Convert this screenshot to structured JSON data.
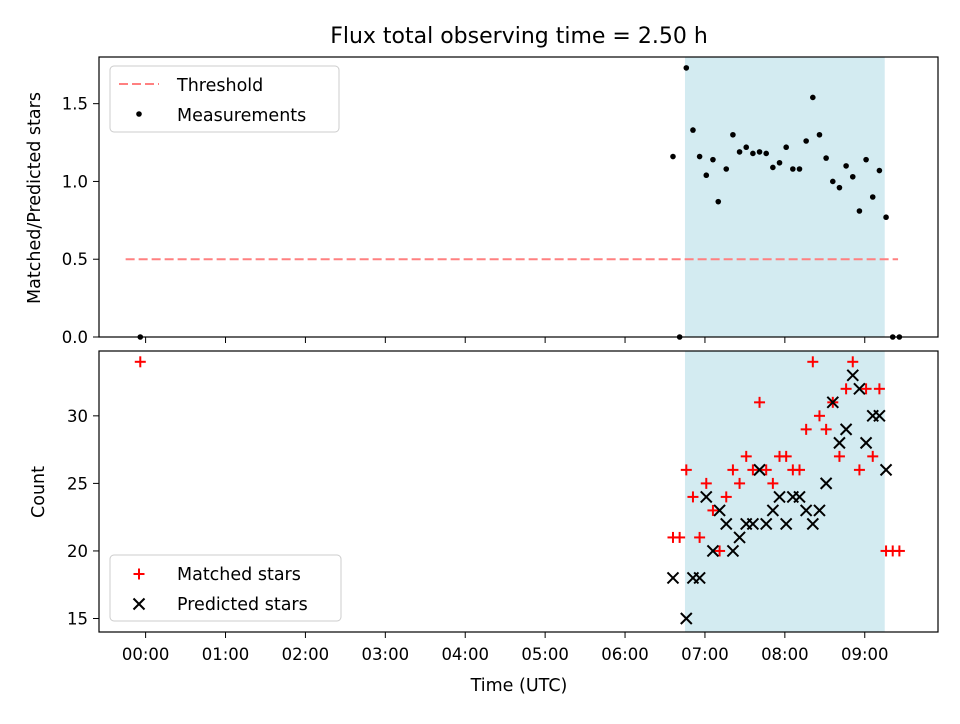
{
  "figure": {
    "title": "Flux total observing time = 2.50 h",
    "xlabel": "Time (UTC)"
  },
  "colors": {
    "band": "#d3ebf1",
    "threshold": "#ff8080",
    "measurement": "#000000",
    "matched": "#ff0000",
    "predicted": "#000000"
  },
  "chart_data": [
    {
      "type": "scatter",
      "panel": "top",
      "ylabel": "Matched/Predicted stars",
      "xlim": [
        "-00:35",
        "09:55"
      ],
      "ylim": [
        0,
        1.8
      ],
      "yticks": [
        0.0,
        0.5,
        1.0,
        1.5
      ],
      "ytick_labels": [
        "0.0",
        "0.5",
        "1.0",
        "1.5"
      ],
      "xtick_labels_shown": false,
      "legend": {
        "position": "top-left",
        "entries": [
          "Threshold",
          "Measurements"
        ]
      },
      "shaded_interval": {
        "start": "06:45",
        "end": "09:15"
      },
      "threshold": {
        "name": "Threshold",
        "y": 0.5,
        "x_start": "-00:15",
        "x_end": "09:25",
        "style": "dashed"
      },
      "series": [
        {
          "name": "Measurements",
          "marker": "dot",
          "points": [
            [
              "-00:04",
              0.0
            ],
            [
              "06:36",
              1.16
            ],
            [
              "06:41",
              0.0
            ],
            [
              "06:46",
              1.73
            ],
            [
              "06:51",
              1.33
            ],
            [
              "06:56",
              1.16
            ],
            [
              "07:01",
              1.04
            ],
            [
              "07:06",
              1.14
            ],
            [
              "07:10",
              0.87
            ],
            [
              "07:16",
              1.08
            ],
            [
              "07:21",
              1.3
            ],
            [
              "07:26",
              1.19
            ],
            [
              "07:31",
              1.22
            ],
            [
              "07:36",
              1.18
            ],
            [
              "07:41",
              1.19
            ],
            [
              "07:46",
              1.18
            ],
            [
              "07:51",
              1.09
            ],
            [
              "07:56",
              1.12
            ],
            [
              "08:01",
              1.22
            ],
            [
              "08:06",
              1.08
            ],
            [
              "08:11",
              1.08
            ],
            [
              "08:16",
              1.26
            ],
            [
              "08:21",
              1.54
            ],
            [
              "08:26",
              1.3
            ],
            [
              "08:31",
              1.15
            ],
            [
              "08:36",
              1.0
            ],
            [
              "08:41",
              0.96
            ],
            [
              "08:46",
              1.1
            ],
            [
              "08:51",
              1.03
            ],
            [
              "08:56",
              0.81
            ],
            [
              "09:01",
              1.14
            ],
            [
              "09:06",
              0.9
            ],
            [
              "09:11",
              1.07
            ],
            [
              "09:16",
              0.77
            ],
            [
              "09:21",
              0.0
            ],
            [
              "09:26",
              0.0
            ]
          ]
        }
      ]
    },
    {
      "type": "scatter",
      "panel": "bottom",
      "ylabel": "Count",
      "xlabel": "Time (UTC)",
      "xlim": [
        "-00:35",
        "09:55"
      ],
      "ylim": [
        14,
        34.8
      ],
      "yticks": [
        15,
        20,
        25,
        30
      ],
      "xticks": [
        "00:00",
        "01:00",
        "02:00",
        "03:00",
        "04:00",
        "05:00",
        "06:00",
        "07:00",
        "08:00",
        "09:00"
      ],
      "legend": {
        "position": "bottom-left",
        "entries": [
          "Matched stars",
          "Predicted stars"
        ]
      },
      "shaded_interval": {
        "start": "06:45",
        "end": "09:15"
      },
      "series": [
        {
          "name": "Matched stars",
          "marker": "plus",
          "points": [
            [
              "-00:04",
              34
            ],
            [
              "06:36",
              21
            ],
            [
              "06:41",
              21
            ],
            [
              "06:46",
              26
            ],
            [
              "06:51",
              24
            ],
            [
              "06:56",
              21
            ],
            [
              "07:01",
              25
            ],
            [
              "07:06",
              23
            ],
            [
              "07:11",
              20
            ],
            [
              "07:16",
              24
            ],
            [
              "07:21",
              26
            ],
            [
              "07:26",
              25
            ],
            [
              "07:31",
              27
            ],
            [
              "07:36",
              26
            ],
            [
              "07:41",
              31
            ],
            [
              "07:46",
              26
            ],
            [
              "07:51",
              25
            ],
            [
              "07:56",
              27
            ],
            [
              "08:01",
              27
            ],
            [
              "08:06",
              26
            ],
            [
              "08:11",
              26
            ],
            [
              "08:16",
              29
            ],
            [
              "08:21",
              34
            ],
            [
              "08:26",
              30
            ],
            [
              "08:31",
              29
            ],
            [
              "08:36",
              31
            ],
            [
              "08:41",
              27
            ],
            [
              "08:46",
              32
            ],
            [
              "08:51",
              34
            ],
            [
              "08:56",
              26
            ],
            [
              "09:01",
              32
            ],
            [
              "09:06",
              27
            ],
            [
              "09:11",
              32
            ],
            [
              "09:16",
              20
            ],
            [
              "09:21",
              20
            ],
            [
              "09:26",
              20
            ]
          ]
        },
        {
          "name": "Predicted stars",
          "marker": "x",
          "points": [
            [
              "06:36",
              18
            ],
            [
              "06:46",
              15
            ],
            [
              "06:51",
              18
            ],
            [
              "06:56",
              18
            ],
            [
              "07:01",
              24
            ],
            [
              "07:06",
              20
            ],
            [
              "07:11",
              23
            ],
            [
              "07:16",
              22
            ],
            [
              "07:21",
              20
            ],
            [
              "07:26",
              21
            ],
            [
              "07:31",
              22
            ],
            [
              "07:36",
              22
            ],
            [
              "07:41",
              26
            ],
            [
              "07:46",
              22
            ],
            [
              "07:51",
              23
            ],
            [
              "07:56",
              24
            ],
            [
              "08:01",
              22
            ],
            [
              "08:06",
              24
            ],
            [
              "08:11",
              24
            ],
            [
              "08:16",
              23
            ],
            [
              "08:21",
              22
            ],
            [
              "08:26",
              23
            ],
            [
              "08:31",
              25
            ],
            [
              "08:36",
              31
            ],
            [
              "08:41",
              28
            ],
            [
              "08:46",
              29
            ],
            [
              "08:51",
              33
            ],
            [
              "08:56",
              32
            ],
            [
              "09:01",
              28
            ],
            [
              "09:06",
              30
            ],
            [
              "09:11",
              30
            ],
            [
              "09:16",
              26
            ]
          ]
        }
      ]
    }
  ]
}
